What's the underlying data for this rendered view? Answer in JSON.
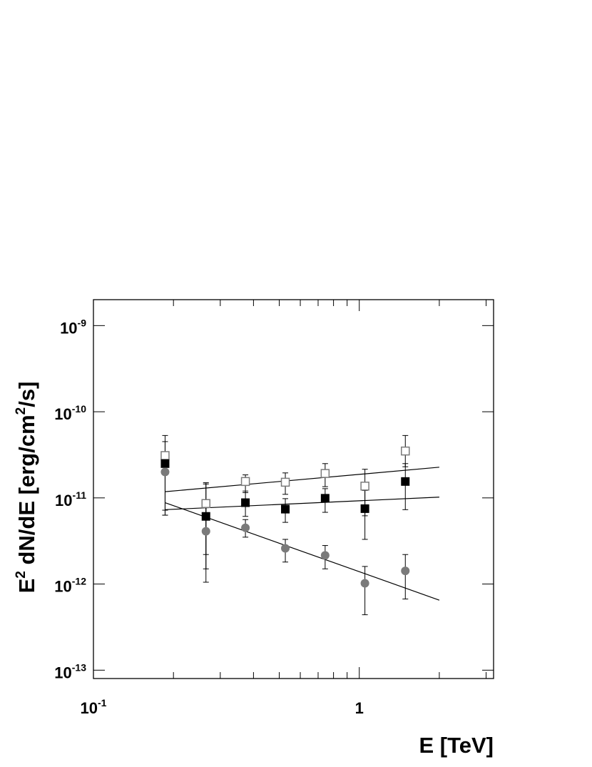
{
  "chart_data": {
    "type": "scatter",
    "xlabel": "E [TeV]",
    "ylabel": {
      "text_before": "E",
      "sup1": "2",
      "text_middle": " dN/dE [erg/cm",
      "sup2": "2",
      "text_after": "/s]"
    },
    "x_scale": "log",
    "y_scale": "log",
    "xlim": [
      0.1,
      3.2
    ],
    "ylim": [
      8e-14,
      2e-09
    ],
    "x_ticks": [
      {
        "value": 0.1,
        "base": "10",
        "exp": "-1"
      },
      {
        "value": 1,
        "base": "1",
        "exp": ""
      }
    ],
    "y_ticks": [
      {
        "value": 1e-09,
        "base": "10",
        "exp": "-9"
      },
      {
        "value": 1e-10,
        "base": "10",
        "exp": "-10"
      },
      {
        "value": 1e-11,
        "base": "10",
        "exp": "-11"
      },
      {
        "value": 1e-12,
        "base": "10",
        "exp": "-12"
      },
      {
        "value": 1e-13,
        "base": "10",
        "exp": "-13"
      }
    ],
    "grid": false,
    "legend": "none",
    "series": [
      {
        "marker": "open-square",
        "color": "#7a7a7a",
        "points": [
          {
            "x": 0.186,
            "y": 3.1e-11,
            "ylo": 6.3e-12,
            "yhi": 5.3e-11
          },
          {
            "x": 0.265,
            "y": 8.6e-12,
            "ylo": 2.2e-12,
            "yhi": 1.5e-11
          },
          {
            "x": 0.373,
            "y": 1.55e-11,
            "ylo": 1.15e-11,
            "yhi": 1.85e-11
          },
          {
            "x": 0.527,
            "y": 1.52e-11,
            "ylo": 1.1e-11,
            "yhi": 1.95e-11
          },
          {
            "x": 0.744,
            "y": 1.92e-11,
            "ylo": 1.35e-11,
            "yhi": 2.5e-11
          },
          {
            "x": 1.05,
            "y": 1.37e-11,
            "ylo": 6.2e-12,
            "yhi": 2.15e-11
          },
          {
            "x": 1.49,
            "y": 3.5e-11,
            "ylo": 2.3e-11,
            "yhi": 5.3e-11
          }
        ],
        "fit": {
          "x": [
            0.186,
            2.0
          ],
          "y": [
            1.18e-11,
            2.27e-11
          ]
        }
      },
      {
        "marker": "filled-square",
        "color": "#000000",
        "points": [
          {
            "x": 0.186,
            "y": 2.5e-11,
            "ylo": 6.3e-12,
            "yhi": 4.5e-11
          },
          {
            "x": 0.265,
            "y": 6.1e-12,
            "ylo": 1.5e-12,
            "yhi": 1.45e-11
          },
          {
            "x": 0.373,
            "y": 8.8e-12,
            "ylo": 6.1e-12,
            "yhi": 1.2e-11
          },
          {
            "x": 0.527,
            "y": 7.4e-12,
            "ylo": 5.2e-12,
            "yhi": 9.8e-12
          },
          {
            "x": 0.744,
            "y": 9.9e-12,
            "ylo": 6.8e-12,
            "yhi": 1.28e-11
          },
          {
            "x": 1.05,
            "y": 7.5e-12,
            "ylo": 3.3e-12,
            "yhi": 1.22e-11
          },
          {
            "x": 1.49,
            "y": 1.55e-11,
            "ylo": 7.3e-12,
            "yhi": 2.5e-11
          }
        ],
        "fit": {
          "x": [
            0.186,
            2.0
          ],
          "y": [
            7.3e-12,
            1.02e-11
          ]
        }
      },
      {
        "marker": "filled-circle",
        "color": "#7a7a7a",
        "points": [
          {
            "x": 0.186,
            "y": 2e-11,
            "ylo": 7.2e-12,
            "yhi": 3e-11
          },
          {
            "x": 0.265,
            "y": 4.1e-12,
            "ylo": 1.05e-12,
            "yhi": 8e-12
          },
          {
            "x": 0.373,
            "y": 4.5e-12,
            "ylo": 3.5e-12,
            "yhi": 5.6e-12
          },
          {
            "x": 0.527,
            "y": 2.6e-12,
            "ylo": 1.8e-12,
            "yhi": 3.3e-12
          },
          {
            "x": 0.744,
            "y": 2.15e-12,
            "ylo": 1.5e-12,
            "yhi": 2.8e-12
          },
          {
            "x": 1.05,
            "y": 1.02e-12,
            "ylo": 4.4e-13,
            "yhi": 1.6e-12
          },
          {
            "x": 1.49,
            "y": 1.42e-12,
            "ylo": 6.7e-13,
            "yhi": 2.2e-12
          }
        ],
        "fit": {
          "x": [
            0.186,
            2.0
          ],
          "y": [
            8.8e-12,
            6.5e-13
          ]
        }
      }
    ]
  }
}
